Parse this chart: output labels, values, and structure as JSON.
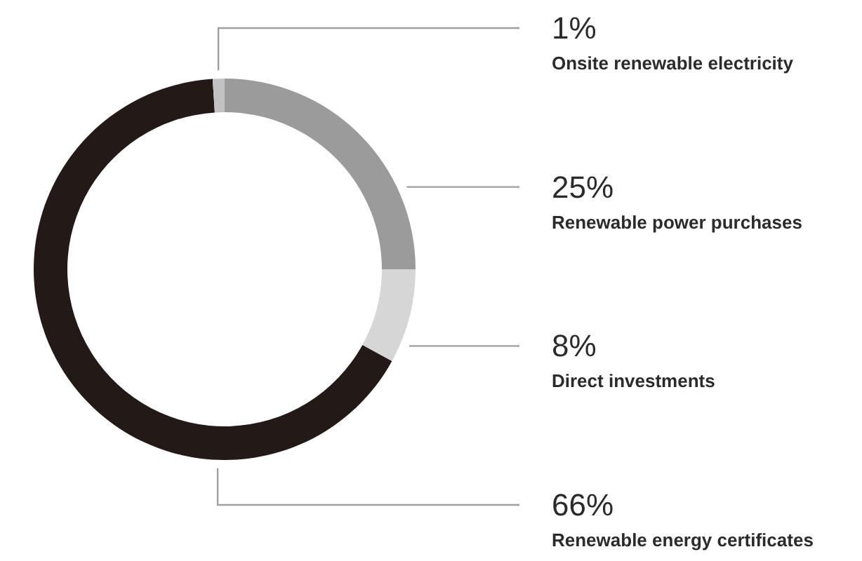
{
  "chart_data": {
    "type": "donut",
    "categories": [
      "Renewable power purchases",
      "Direct investments",
      "Renewable energy certificates",
      "Onsite renewable electricity"
    ],
    "values": [
      25,
      8,
      66,
      1
    ],
    "value_labels": [
      "25%",
      "8%",
      "66%",
      "1%"
    ],
    "colors": [
      "#9b9b9b",
      "#d6d6d6",
      "#231a18",
      "#c2c2c2"
    ]
  }
}
